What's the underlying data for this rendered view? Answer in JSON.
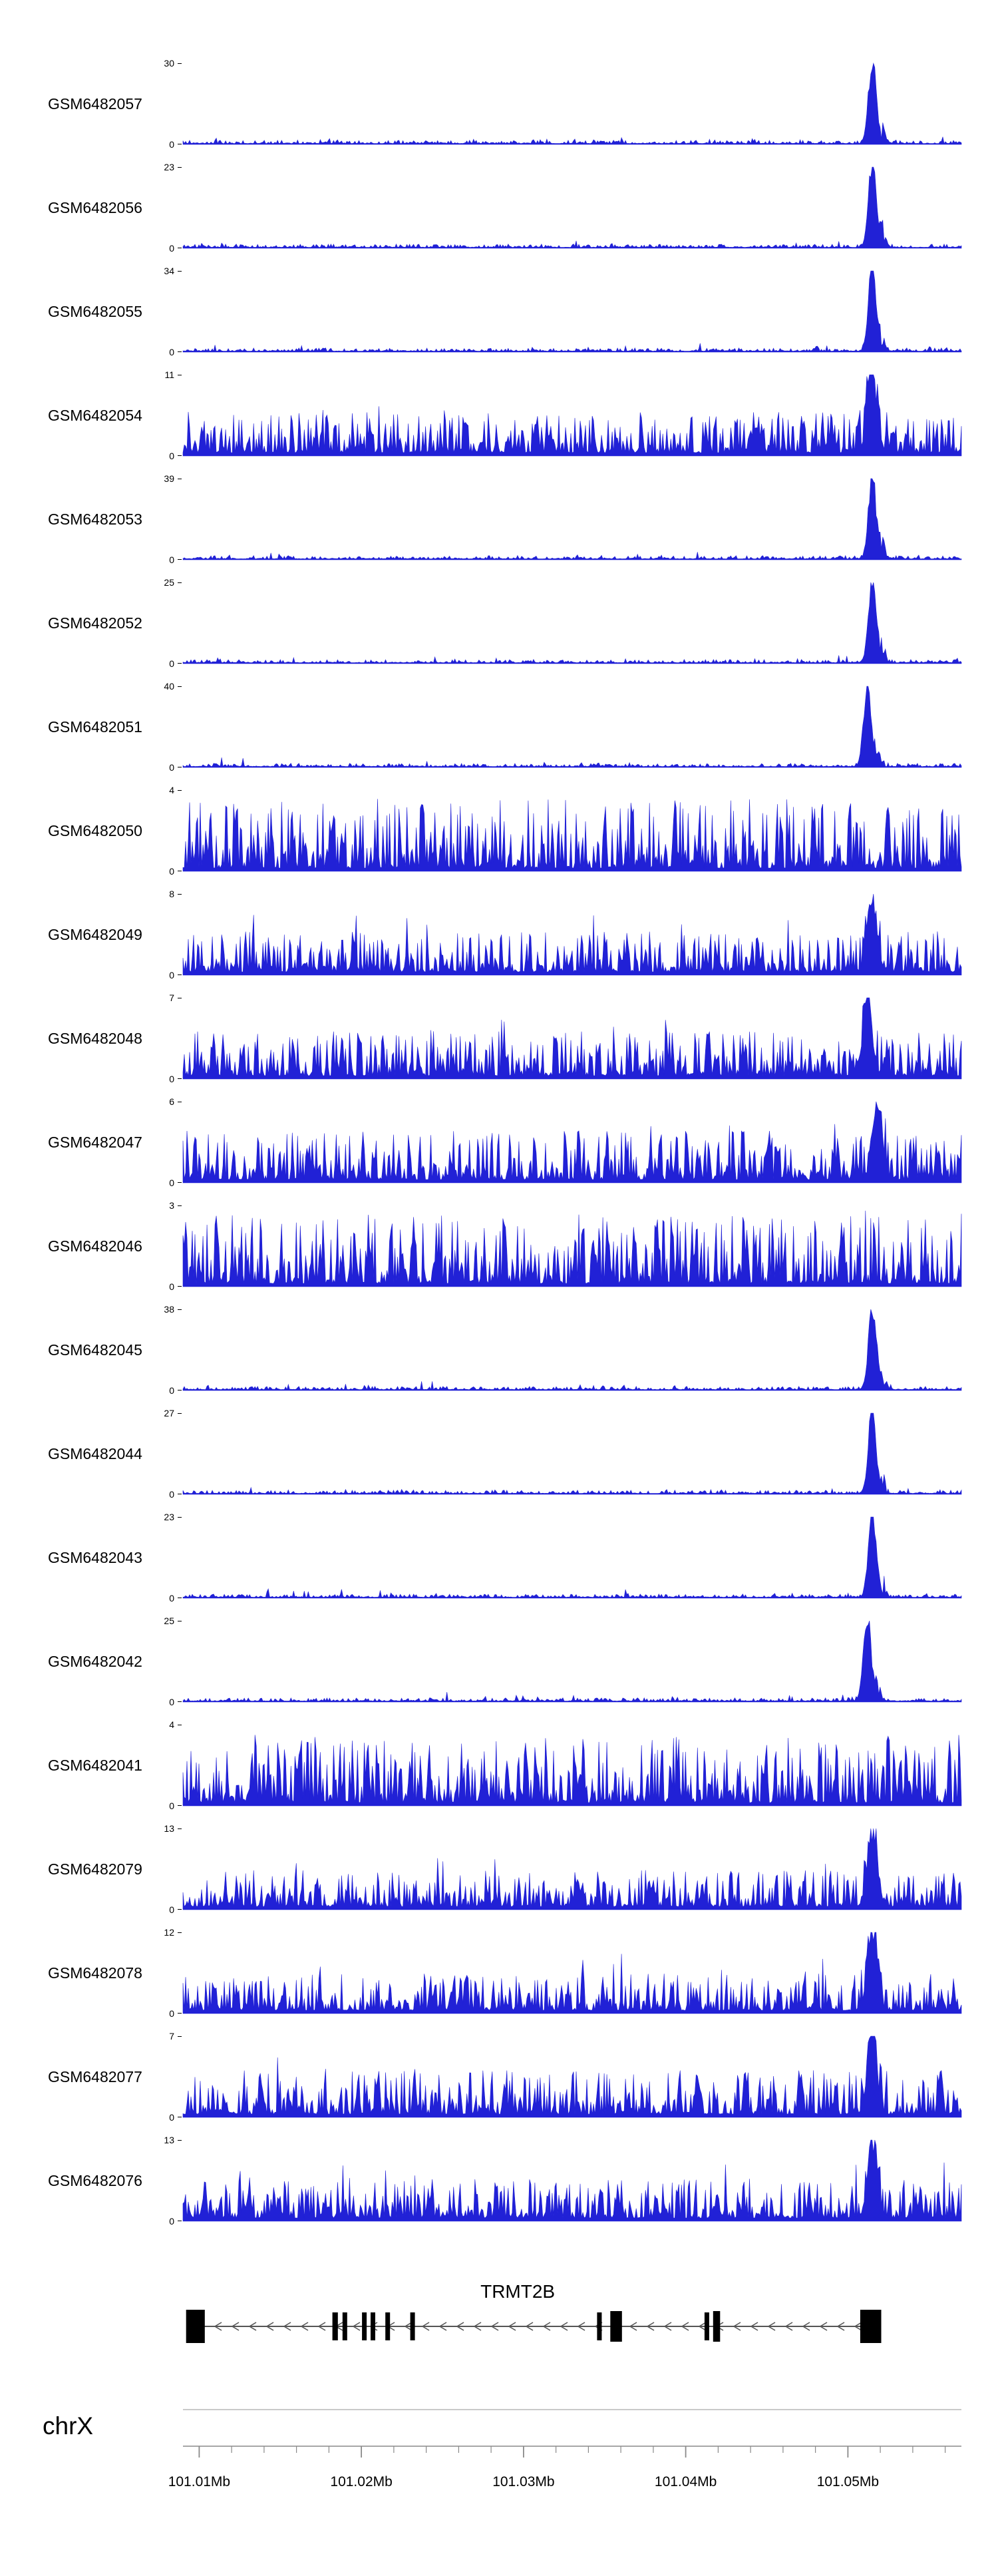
{
  "colors": {
    "track_fill": "#2121d6",
    "label_text": "#000000",
    "gene_color": "#000000",
    "gene_line": "#555555",
    "ruler_line": "#8a8a8a",
    "separator_line": "#aaaaaa"
  },
  "chart_data": {
    "type": "area",
    "layout": "stacked-genome-coverage-tracks",
    "chromosome": "chrX",
    "x_unit": "Mb",
    "x_range_mb": [
      101.009,
      101.057
    ],
    "y_base_label": "0",
    "grid": false,
    "legend": false,
    "minor_tick_step_mb": 0.002,
    "axis_ticks": [
      {
        "pos_mb": 101.01,
        "label": "101.01Mb"
      },
      {
        "pos_mb": 101.02,
        "label": "101.02Mb"
      },
      {
        "pos_mb": 101.03,
        "label": "101.03Mb"
      },
      {
        "pos_mb": 101.04,
        "label": "101.04Mb"
      },
      {
        "pos_mb": 101.05,
        "label": "101.05Mb"
      }
    ],
    "tracks": [
      {
        "label": "GSM6482057",
        "ymax": 30,
        "ymin": 0,
        "profile": "sharp_peak",
        "noise_amp": 0.05,
        "peak_pos_mb": 101.0515,
        "seed": 3
      },
      {
        "label": "GSM6482056",
        "ymax": 23,
        "ymin": 0,
        "profile": "sharp_peak",
        "noise_amp": 0.05,
        "peak_pos_mb": 101.0515,
        "seed": 8
      },
      {
        "label": "GSM6482055",
        "ymax": 34,
        "ymin": 0,
        "profile": "sharp_peak",
        "noise_amp": 0.05,
        "peak_pos_mb": 101.0515,
        "seed": 15
      },
      {
        "label": "GSM6482054",
        "ymax": 11,
        "ymin": 0,
        "profile": "noise_peak",
        "noise_amp": 0.5,
        "peak_pos_mb": 101.0515,
        "seed": 21
      },
      {
        "label": "GSM6482053",
        "ymax": 39,
        "ymin": 0,
        "profile": "sharp_peak",
        "noise_amp": 0.05,
        "peak_pos_mb": 101.0515,
        "seed": 34
      },
      {
        "label": "GSM6482052",
        "ymax": 25,
        "ymin": 0,
        "profile": "sharp_peak",
        "noise_amp": 0.06,
        "peak_pos_mb": 101.0515,
        "seed": 41
      },
      {
        "label": "GSM6482051",
        "ymax": 40,
        "ymin": 0,
        "profile": "sharp_peak",
        "noise_amp": 0.05,
        "peak_pos_mb": 101.0512,
        "seed": 55
      },
      {
        "label": "GSM6482050",
        "ymax": 4,
        "ymin": 0,
        "profile": "noise",
        "noise_amp": 0.85,
        "peak_pos_mb": 101.0515,
        "seed": 60
      },
      {
        "label": "GSM6482049",
        "ymax": 8,
        "ymin": 0,
        "profile": "noise_peak",
        "noise_amp": 0.5,
        "peak_pos_mb": 101.0515,
        "seed": 77
      },
      {
        "label": "GSM6482048",
        "ymax": 7,
        "ymin": 0,
        "profile": "noise_peak",
        "noise_amp": 0.55,
        "peak_pos_mb": 101.0512,
        "seed": 81
      },
      {
        "label": "GSM6482047",
        "ymax": 6,
        "ymin": 0,
        "profile": "noise_peak",
        "noise_amp": 0.6,
        "peak_pos_mb": 101.0518,
        "seed": 90
      },
      {
        "label": "GSM6482046",
        "ymax": 3,
        "ymin": 0,
        "profile": "noise",
        "noise_amp": 0.85,
        "peak_pos_mb": 101.0515,
        "seed": 101
      },
      {
        "label": "GSM6482045",
        "ymax": 38,
        "ymin": 0,
        "profile": "sharp_peak",
        "noise_amp": 0.05,
        "peak_pos_mb": 101.0515,
        "seed": 115
      },
      {
        "label": "GSM6482044",
        "ymax": 27,
        "ymin": 0,
        "profile": "sharp_peak",
        "noise_amp": 0.05,
        "peak_pos_mb": 101.0515,
        "seed": 123
      },
      {
        "label": "GSM6482043",
        "ymax": 23,
        "ymin": 0,
        "profile": "sharp_peak",
        "noise_amp": 0.05,
        "peak_pos_mb": 101.0515,
        "seed": 131
      },
      {
        "label": "GSM6482042",
        "ymax": 25,
        "ymin": 0,
        "profile": "sharp_peak",
        "noise_amp": 0.05,
        "peak_pos_mb": 101.0512,
        "seed": 140
      },
      {
        "label": "GSM6482041",
        "ymax": 4,
        "ymin": 0,
        "profile": "noise",
        "noise_amp": 0.8,
        "peak_pos_mb": 101.0515,
        "seed": 152
      },
      {
        "label": "GSM6482079",
        "ymax": 13,
        "ymin": 0,
        "profile": "noise_peak",
        "noise_amp": 0.45,
        "peak_pos_mb": 101.0515,
        "seed": 161
      },
      {
        "label": "GSM6482078",
        "ymax": 12,
        "ymin": 0,
        "profile": "noise_peak",
        "noise_amp": 0.45,
        "peak_pos_mb": 101.0515,
        "seed": 170
      },
      {
        "label": "GSM6482077",
        "ymax": 7,
        "ymin": 0,
        "profile": "noise_peak",
        "noise_amp": 0.55,
        "peak_pos_mb": 101.0515,
        "seed": 184
      },
      {
        "label": "GSM6482076",
        "ymax": 13,
        "ymin": 0,
        "profile": "noise_peak",
        "noise_amp": 0.5,
        "peak_pos_mb": 101.0515,
        "seed": 190
      }
    ],
    "gene": {
      "name": "TRMT2B",
      "strand": "-",
      "name_center_frac": 0.43,
      "line_start_frac": 0.006,
      "line_end_frac": 0.893,
      "exons": [
        {
          "s": 0.004,
          "e": 0.028,
          "h": "large"
        },
        {
          "s": 0.192,
          "e": 0.199,
          "h": "small"
        },
        {
          "s": 0.205,
          "e": 0.211,
          "h": "small"
        },
        {
          "s": 0.23,
          "e": 0.236,
          "h": "small"
        },
        {
          "s": 0.241,
          "e": 0.247,
          "h": "small"
        },
        {
          "s": 0.26,
          "e": 0.266,
          "h": "small"
        },
        {
          "s": 0.292,
          "e": 0.298,
          "h": "small"
        },
        {
          "s": 0.532,
          "e": 0.538,
          "h": "small"
        },
        {
          "s": 0.549,
          "e": 0.564,
          "h": "medium"
        },
        {
          "s": 0.67,
          "e": 0.676,
          "h": "small"
        },
        {
          "s": 0.681,
          "e": 0.69,
          "h": "medium"
        },
        {
          "s": 0.87,
          "e": 0.897,
          "h": "large"
        }
      ]
    }
  }
}
